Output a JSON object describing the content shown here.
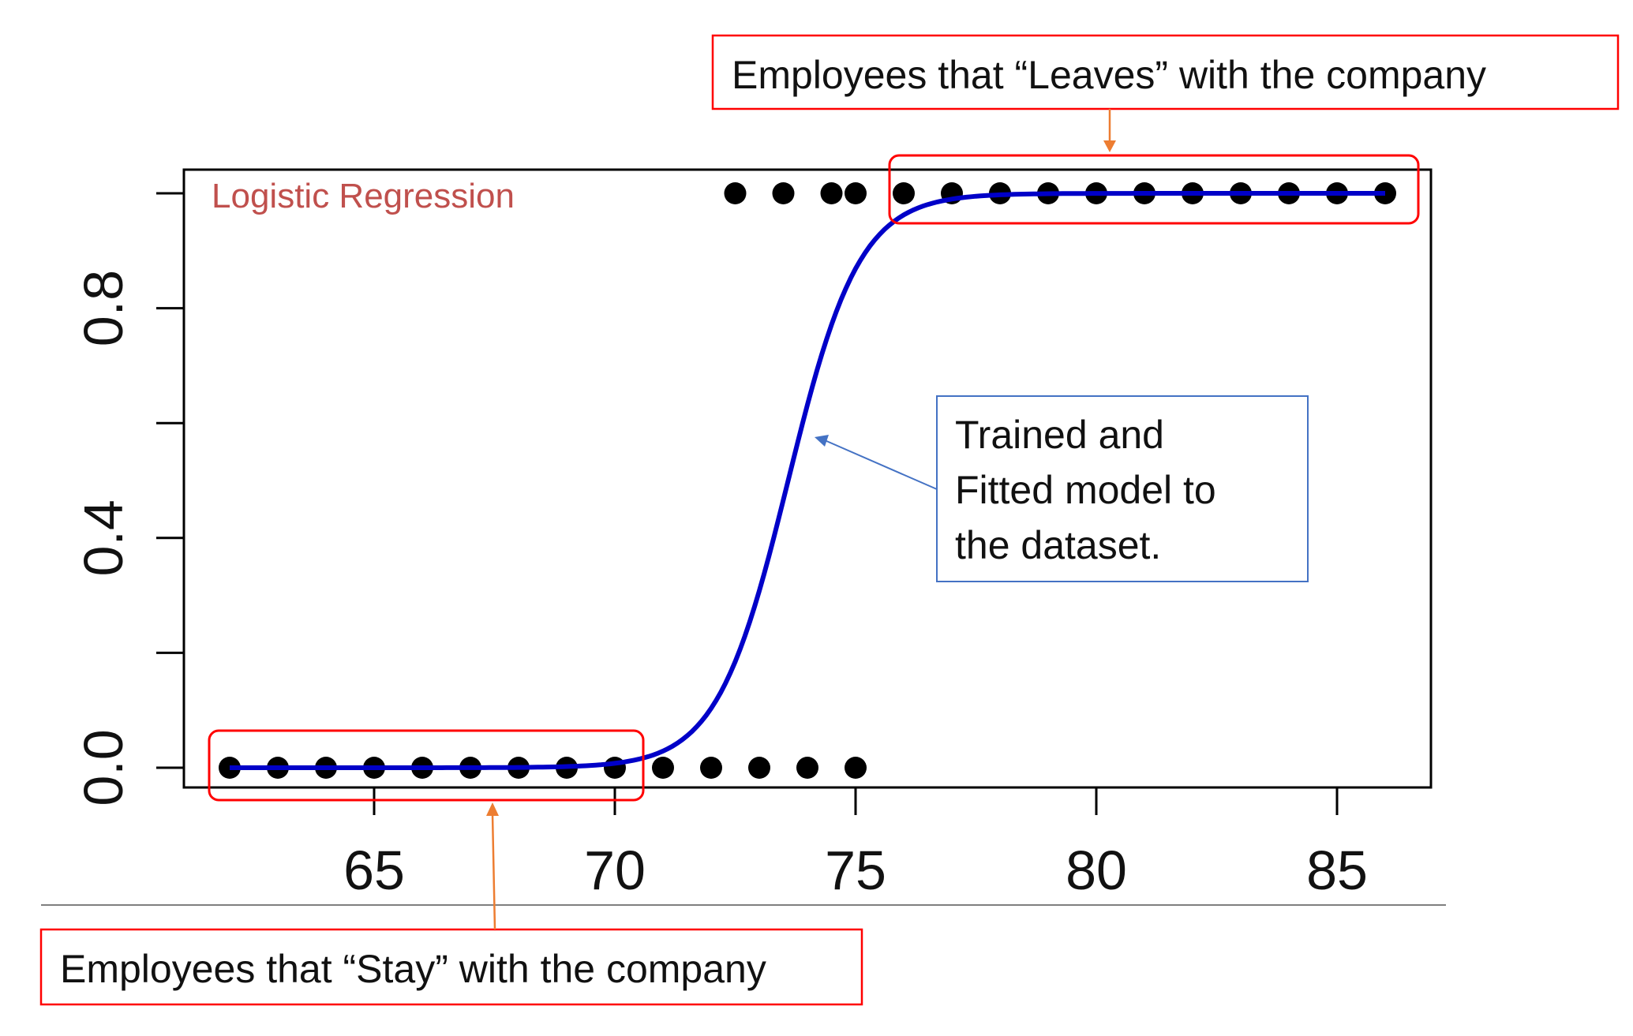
{
  "chart_data": {
    "type": "scatter",
    "title": "Logistic Regression",
    "xlabel": "",
    "ylabel": "",
    "xlim": [
      62,
      86
    ],
    "ylim": [
      0,
      1
    ],
    "x_ticks": [
      "65",
      "70",
      "75",
      "80",
      "85"
    ],
    "x_tick_values": [
      65,
      70,
      75,
      80,
      85
    ],
    "y_tick_values": [
      0.0,
      0.2,
      0.4,
      0.6,
      0.8,
      1.0
    ],
    "y_tick_labels": [
      "0.0",
      "",
      "0.4",
      "",
      "0.8",
      ""
    ],
    "grid": false,
    "series": [
      {
        "kind": "points",
        "points": [
          {
            "x": 62,
            "y": 0
          },
          {
            "x": 63,
            "y": 0
          },
          {
            "x": 64,
            "y": 0
          },
          {
            "x": 65,
            "y": 0
          },
          {
            "x": 66,
            "y": 0
          },
          {
            "x": 67,
            "y": 0
          },
          {
            "x": 68,
            "y": 0
          },
          {
            "x": 69,
            "y": 0
          },
          {
            "x": 70,
            "y": 0
          },
          {
            "x": 71,
            "y": 0
          },
          {
            "x": 72,
            "y": 0
          },
          {
            "x": 73,
            "y": 0
          },
          {
            "x": 74,
            "y": 0
          },
          {
            "x": 75,
            "y": 0
          },
          {
            "x": 72.5,
            "y": 1
          },
          {
            "x": 73.5,
            "y": 1
          },
          {
            "x": 74.5,
            "y": 1
          },
          {
            "x": 75,
            "y": 1
          },
          {
            "x": 76,
            "y": 1
          },
          {
            "x": 77,
            "y": 1
          },
          {
            "x": 78,
            "y": 1
          },
          {
            "x": 79,
            "y": 1
          },
          {
            "x": 80,
            "y": 1
          },
          {
            "x": 81,
            "y": 1
          },
          {
            "x": 82,
            "y": 1
          },
          {
            "x": 83,
            "y": 1
          },
          {
            "x": 84,
            "y": 1
          },
          {
            "x": 85,
            "y": 1
          },
          {
            "x": 86,
            "y": 1
          }
        ]
      },
      {
        "kind": "logistic-curve",
        "midpoint": 73.6,
        "steepness": 1.35
      }
    ],
    "annotations": {
      "leaves": "Employees that “Leaves” with the company",
      "stay": "Employees that “Stay” with the company",
      "model_line1": "Trained and",
      "model_line2": "Fitted model  to",
      "model_line3": "the dataset."
    }
  },
  "colors": {
    "curve": "#0000c8",
    "points": "#000000",
    "title": "#c0504d",
    "highlight_box": "#ff0000",
    "orange_arrow": "#ed7d31",
    "blue_callout": "#4472c4"
  }
}
